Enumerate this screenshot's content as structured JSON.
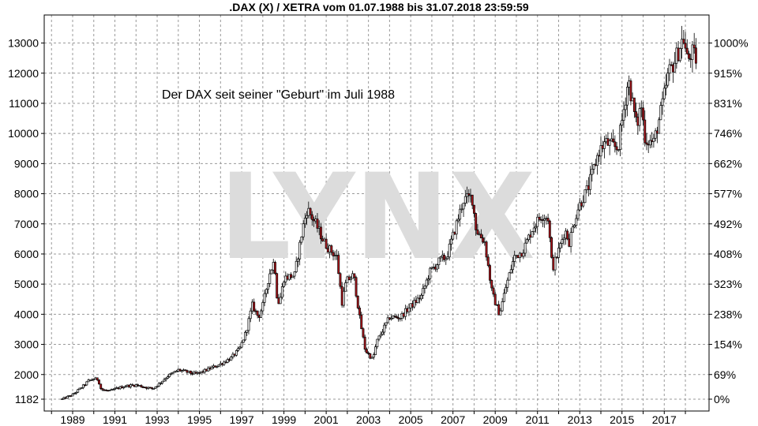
{
  "chart_data": {
    "type": "candlestick",
    "title": ".DAX (X) / XETRA vom 01.07.1988 bis 31.07.2018 23:59:59",
    "annotation": "Der DAX seit seiner \"Geburt\" im Juli 1988",
    "watermark": "LYNX",
    "y_left_ticks": [
      "1182",
      "2000",
      "3000",
      "4000",
      "5000",
      "6000",
      "7000",
      "8000",
      "9000",
      "10000",
      "11000",
      "12000",
      "13000"
    ],
    "y_left_values": [
      1182,
      2000,
      3000,
      4000,
      5000,
      6000,
      7000,
      8000,
      9000,
      10000,
      11000,
      12000,
      13000
    ],
    "y_right_ticks": [
      "0%",
      "69%",
      "154%",
      "238%",
      "323%",
      "408%",
      "492%",
      "577%",
      "662%",
      "746%",
      "831%",
      "915%",
      "1000%"
    ],
    "x_ticks": [
      "1989",
      "1991",
      "1993",
      "1995",
      "1997",
      "1999",
      "2001",
      "2003",
      "2005",
      "2007",
      "2009",
      "2011",
      "2013",
      "2015",
      "2017"
    ],
    "ylim": [
      1000,
      13600
    ],
    "xlim": [
      1988.0,
      2018.75
    ],
    "grid": true,
    "colors": {
      "up": "#ffffff",
      "down": "#b0151b",
      "outline": "#000000",
      "grid": "#9a9a9a",
      "watermark": "#dcdcdc"
    },
    "series": [
      {
        "name": "DAX",
        "points": [
          {
            "t": 1988.5,
            "v": 1182
          },
          {
            "t": 1989.0,
            "v": 1330
          },
          {
            "t": 1989.5,
            "v": 1620
          },
          {
            "t": 1989.75,
            "v": 1790
          },
          {
            "t": 1990.0,
            "v": 1860
          },
          {
            "t": 1990.2,
            "v": 1840
          },
          {
            "t": 1990.35,
            "v": 1500
          },
          {
            "t": 1990.75,
            "v": 1450
          },
          {
            "t": 1991.0,
            "v": 1520
          },
          {
            "t": 1991.5,
            "v": 1620
          },
          {
            "t": 1992.0,
            "v": 1650
          },
          {
            "t": 1992.5,
            "v": 1570
          },
          {
            "t": 1992.8,
            "v": 1530
          },
          {
            "t": 1993.0,
            "v": 1640
          },
          {
            "t": 1993.5,
            "v": 1950
          },
          {
            "t": 1994.0,
            "v": 2150
          },
          {
            "t": 1994.3,
            "v": 2100
          },
          {
            "t": 1994.8,
            "v": 2020
          },
          {
            "t": 1995.0,
            "v": 2050
          },
          {
            "t": 1995.5,
            "v": 2200
          },
          {
            "t": 1996.0,
            "v": 2350
          },
          {
            "t": 1996.5,
            "v": 2550
          },
          {
            "t": 1996.9,
            "v": 2850
          },
          {
            "t": 1997.2,
            "v": 3400
          },
          {
            "t": 1997.5,
            "v": 4300
          },
          {
            "t": 1997.8,
            "v": 3900
          },
          {
            "t": 1998.0,
            "v": 4300
          },
          {
            "t": 1998.3,
            "v": 5300
          },
          {
            "t": 1998.55,
            "v": 5800
          },
          {
            "t": 1998.7,
            "v": 4300
          },
          {
            "t": 1998.85,
            "v": 4600
          },
          {
            "t": 1999.0,
            "v": 5200
          },
          {
            "t": 1999.5,
            "v": 5300
          },
          {
            "t": 1999.9,
            "v": 6900
          },
          {
            "t": 2000.1,
            "v": 7500
          },
          {
            "t": 2000.5,
            "v": 7000
          },
          {
            "t": 2000.9,
            "v": 6400
          },
          {
            "t": 2001.1,
            "v": 6200
          },
          {
            "t": 2001.5,
            "v": 5900
          },
          {
            "t": 2001.75,
            "v": 4400
          },
          {
            "t": 2001.95,
            "v": 5100
          },
          {
            "t": 2002.3,
            "v": 5300
          },
          {
            "t": 2002.6,
            "v": 3800
          },
          {
            "t": 2002.85,
            "v": 2800
          },
          {
            "t": 2003.2,
            "v": 2500
          },
          {
            "t": 2003.4,
            "v": 3100
          },
          {
            "t": 2003.7,
            "v": 3500
          },
          {
            "t": 2004.0,
            "v": 3900
          },
          {
            "t": 2004.5,
            "v": 3900
          },
          {
            "t": 2004.9,
            "v": 4200
          },
          {
            "t": 2005.5,
            "v": 4600
          },
          {
            "t": 2005.9,
            "v": 5400
          },
          {
            "t": 2006.4,
            "v": 5800
          },
          {
            "t": 2006.7,
            "v": 5900
          },
          {
            "t": 2007.0,
            "v": 6600
          },
          {
            "t": 2007.5,
            "v": 7800
          },
          {
            "t": 2007.9,
            "v": 7900
          },
          {
            "t": 2008.1,
            "v": 6800
          },
          {
            "t": 2008.5,
            "v": 6400
          },
          {
            "t": 2008.85,
            "v": 4700
          },
          {
            "t": 2009.2,
            "v": 4000
          },
          {
            "t": 2009.5,
            "v": 4900
          },
          {
            "t": 2009.9,
            "v": 5900
          },
          {
            "t": 2010.3,
            "v": 6100
          },
          {
            "t": 2010.8,
            "v": 6900
          },
          {
            "t": 2011.2,
            "v": 7300
          },
          {
            "t": 2011.5,
            "v": 7200
          },
          {
            "t": 2011.7,
            "v": 5500
          },
          {
            "t": 2011.95,
            "v": 6000
          },
          {
            "t": 2012.3,
            "v": 6800
          },
          {
            "t": 2012.5,
            "v": 6400
          },
          {
            "t": 2012.9,
            "v": 7500
          },
          {
            "t": 2013.4,
            "v": 8200
          },
          {
            "t": 2013.9,
            "v": 9400
          },
          {
            "t": 2014.2,
            "v": 9700
          },
          {
            "t": 2014.8,
            "v": 9500
          },
          {
            "t": 2015.3,
            "v": 11800
          },
          {
            "t": 2015.7,
            "v": 10200
          },
          {
            "t": 2015.9,
            "v": 11000
          },
          {
            "t": 2016.1,
            "v": 9800
          },
          {
            "t": 2016.5,
            "v": 9700
          },
          {
            "t": 2016.9,
            "v": 10900
          },
          {
            "t": 2017.2,
            "v": 12000
          },
          {
            "t": 2017.5,
            "v": 12400
          },
          {
            "t": 2017.9,
            "v": 13200
          },
          {
            "t": 2018.1,
            "v": 12400
          },
          {
            "t": 2018.3,
            "v": 12700
          },
          {
            "t": 2018.55,
            "v": 12400
          }
        ]
      }
    ]
  }
}
